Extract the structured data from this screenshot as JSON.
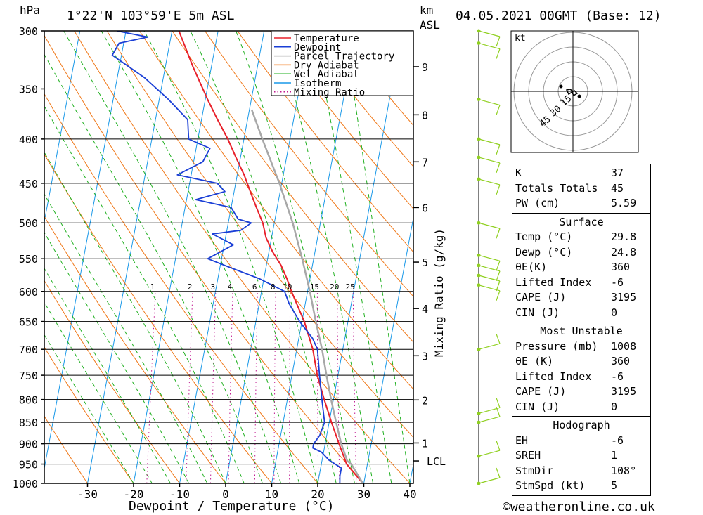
{
  "header": {
    "pressure_unit": "hPa",
    "location": "1°22'N  103°59'E  5m  ASL",
    "km_unit": "km",
    "asl": "ASL",
    "datetime": "04.05.2021  00GMT  (Base: 12)"
  },
  "chart_data": {
    "type": "line",
    "title": "1°22'N 103°59'E 5m ASL",
    "xlabel": "Dewpoint / Temperature (°C)",
    "ylabel": "hPa",
    "xlim": [
      -40,
      40
    ],
    "ylim": [
      1000,
      300
    ],
    "pressure_ticks": [
      300,
      350,
      400,
      450,
      500,
      550,
      600,
      650,
      700,
      750,
      800,
      850,
      900,
      950,
      1000
    ],
    "temperature_ticks": [
      -30,
      -20,
      -10,
      0,
      10,
      20,
      30,
      40
    ],
    "height_ticks": [
      {
        "label": "9",
        "p": 330
      },
      {
        "label": "8",
        "p": 375
      },
      {
        "label": "7",
        "p": 425
      },
      {
        "label": "6",
        "p": 480
      },
      {
        "label": "5",
        "p": 555
      },
      {
        "label": "4",
        "p": 628
      },
      {
        "label": "3",
        "p": 712
      },
      {
        "label": "2",
        "p": 801
      },
      {
        "label": "1",
        "p": 898
      },
      {
        "label": "LCL",
        "p": 942
      }
    ],
    "mixing_ratio_label": "Mixing Ratio (g/kg)",
    "mixing_ratios": [
      "1",
      "2",
      "3",
      "4",
      "6",
      "8",
      "10",
      "15",
      "20",
      "25"
    ],
    "legend": [
      "Temperature",
      "Dewpoint",
      "Parcel Trajectory",
      "Dry Adiabat",
      "Wet Adiabat",
      "Isotherm",
      "Mixing Ratio"
    ],
    "legend_position": "top-right",
    "colors": {
      "temperature": "#e8202a",
      "dewpoint": "#1a3fd6",
      "parcel": "#a8a8a8",
      "dry_adiabat": "#f07818",
      "wet_adiabat": "#20b020",
      "isotherm": "#1898e8",
      "mixing_ratio": "#c01890",
      "wind": "#90d020"
    },
    "series": [
      {
        "name": "Temperature",
        "points": [
          [
            1000,
            29.8
          ],
          [
            950,
            25.5
          ],
          [
            900,
            23
          ],
          [
            850,
            20.5
          ],
          [
            800,
            18
          ],
          [
            750,
            15.5
          ],
          [
            700,
            13.5
          ],
          [
            650,
            10.5
          ],
          [
            600,
            6.5
          ],
          [
            580,
            5
          ],
          [
            560,
            3.2
          ],
          [
            540,
            0.8
          ],
          [
            520,
            -1.2
          ],
          [
            500,
            -2.5
          ],
          [
            480,
            -4.5
          ],
          [
            460,
            -6.5
          ],
          [
            440,
            -8.5
          ],
          [
            420,
            -11
          ],
          [
            400,
            -13.5
          ],
          [
            380,
            -16.5
          ],
          [
            360,
            -19.5
          ],
          [
            330,
            -24
          ],
          [
            300,
            -28.5
          ]
        ]
      },
      {
        "name": "Dewpoint",
        "points": [
          [
            1000,
            24.8
          ],
          [
            980,
            24.5
          ],
          [
            960,
            24.5
          ],
          [
            940,
            21.5
          ],
          [
            920,
            19.5
          ],
          [
            910,
            17.5
          ],
          [
            900,
            17.5
          ],
          [
            880,
            18.5
          ],
          [
            850,
            19
          ],
          [
            800,
            17.5
          ],
          [
            750,
            16
          ],
          [
            700,
            14.5
          ],
          [
            680,
            13
          ],
          [
            650,
            9.5
          ],
          [
            620,
            6.5
          ],
          [
            600,
            5
          ],
          [
            580,
            -1
          ],
          [
            560,
            -9
          ],
          [
            550,
            -13
          ],
          [
            530,
            -8
          ],
          [
            515,
            -13
          ],
          [
            510,
            -7
          ],
          [
            500,
            -5
          ],
          [
            495,
            -8
          ],
          [
            480,
            -10
          ],
          [
            470,
            -18
          ],
          [
            460,
            -12
          ],
          [
            450,
            -14
          ],
          [
            440,
            -23
          ],
          [
            425,
            -18
          ],
          [
            410,
            -17
          ],
          [
            400,
            -22
          ],
          [
            380,
            -23
          ],
          [
            360,
            -28
          ],
          [
            340,
            -34
          ],
          [
            320,
            -42
          ],
          [
            310,
            -41
          ],
          [
            305,
            -35
          ],
          [
            300,
            -42
          ]
        ]
      },
      {
        "name": "Parcel Trajectory",
        "points": [
          [
            1000,
            29.8
          ],
          [
            950,
            26.5
          ],
          [
            942,
            25.5
          ],
          [
            900,
            23.5
          ],
          [
            850,
            21.5
          ],
          [
            800,
            19.5
          ],
          [
            750,
            17.5
          ],
          [
            700,
            15.5
          ],
          [
            650,
            13
          ],
          [
            600,
            10.5
          ],
          [
            550,
            7.5
          ],
          [
            500,
            4
          ],
          [
            450,
            -0.5
          ],
          [
            400,
            -6
          ],
          [
            370,
            -9.5
          ]
        ]
      }
    ]
  },
  "hodograph": {
    "unit": "kt",
    "ring_labels": [
      "15",
      "30",
      "45"
    ]
  },
  "indices": [
    {
      "label": "K",
      "value": "37"
    },
    {
      "label": "Totals Totals",
      "value": "45"
    },
    {
      "label": "PW (cm)",
      "value": "5.59"
    }
  ],
  "surface": {
    "title": "Surface",
    "rows": [
      {
        "label": "Temp (°C)",
        "value": "29.8"
      },
      {
        "label": "Dewp (°C)",
        "value": "24.8"
      },
      {
        "label": "θE(K)",
        "value": "360"
      },
      {
        "label": "Lifted Index",
        "value": "-6"
      },
      {
        "label": "CAPE (J)",
        "value": "3195"
      },
      {
        "label": "CIN (J)",
        "value": "0"
      }
    ]
  },
  "most_unstable": {
    "title": "Most Unstable",
    "rows": [
      {
        "label": "Pressure (mb)",
        "value": "1008"
      },
      {
        "label": "θE (K)",
        "value": "360"
      },
      {
        "label": "Lifted Index",
        "value": "-6"
      },
      {
        "label": "CAPE (J)",
        "value": "3195"
      },
      {
        "label": "CIN (J)",
        "value": "0"
      }
    ]
  },
  "hodograph_box": {
    "title": "Hodograph",
    "rows": [
      {
        "label": "EH",
        "value": "-6"
      },
      {
        "label": "SREH",
        "value": "1"
      },
      {
        "label": "StmDir",
        "value": "108°"
      },
      {
        "label": "StmSpd (kt)",
        "value": "5"
      }
    ]
  },
  "footer": "©weatheronline.co.uk"
}
